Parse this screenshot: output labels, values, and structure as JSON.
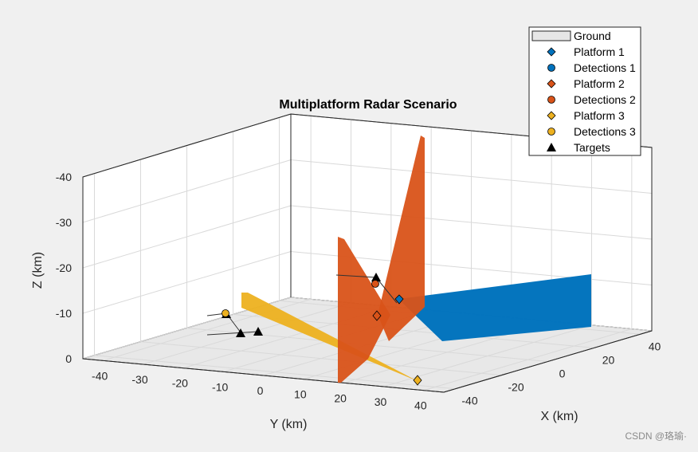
{
  "chart_data": {
    "type": "scatter3d",
    "title": "Multiplatform Radar Scenario",
    "xlabel": "X (km)",
    "ylabel": "Y (km)",
    "zlabel": "Z (km)",
    "xlim": [
      -45,
      45
    ],
    "ylim": [
      -45,
      45
    ],
    "zlim": [
      -40,
      0
    ],
    "x_ticks": [
      -40,
      -20,
      0,
      20,
      40
    ],
    "y_ticks": [
      -40,
      -30,
      -20,
      -10,
      0,
      10,
      20,
      30,
      40
    ],
    "z_ticks": [
      -40,
      -30,
      -20,
      -10,
      0
    ],
    "grid": true,
    "legend_position": "top-right",
    "legend": [
      {
        "label": "Ground",
        "marker": "rect",
        "color": "#e6e6e6"
      },
      {
        "label": "Platform 1",
        "marker": "diamond",
        "color": "#0072bd"
      },
      {
        "label": "Detections 1",
        "marker": "circle",
        "color": "#0072bd"
      },
      {
        "label": "Platform 2",
        "marker": "diamond",
        "color": "#d95319"
      },
      {
        "label": "Detections 2",
        "marker": "circle",
        "color": "#d95319"
      },
      {
        "label": "Platform 3",
        "marker": "diamond",
        "color": "#edb120"
      },
      {
        "label": "Detections 3",
        "marker": "circle",
        "color": "#edb120"
      },
      {
        "label": "Targets",
        "marker": "triangle",
        "color": "#000000"
      }
    ],
    "platforms": [
      {
        "name": "Platform 1",
        "x": 10,
        "y": 28,
        "z": -13,
        "color": "#0072bd"
      },
      {
        "name": "Platform 2",
        "x": 10,
        "y": 30,
        "z": -10,
        "color": "#d95319"
      },
      {
        "name": "Platform 3",
        "x": -40,
        "y": 40,
        "z": 0,
        "color": "#edb120"
      }
    ],
    "detections": [
      {
        "name": "Detections 2",
        "x": 18,
        "y": 28,
        "z": -17,
        "color": "#d95319"
      },
      {
        "name": "Detections 3",
        "x": 30,
        "y": -33,
        "z": -10,
        "color": "#edb120"
      }
    ],
    "targets": [
      {
        "x": 18,
        "y": 28,
        "z": -18
      },
      {
        "x": 30,
        "y": -33,
        "z": -10
      },
      {
        "x": 15,
        "y": -20,
        "z": -5
      },
      {
        "x": 20,
        "y": -15,
        "z": -6
      }
    ]
  },
  "watermark": "CSDN @珞瑜·"
}
